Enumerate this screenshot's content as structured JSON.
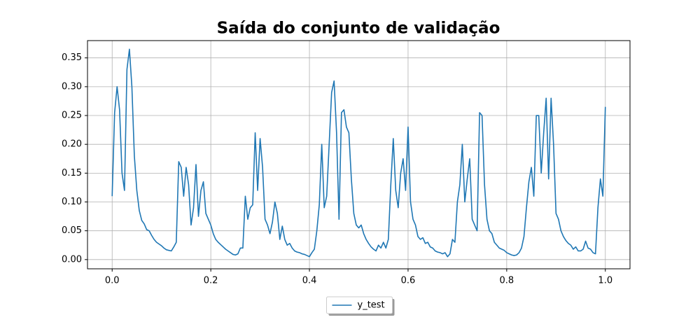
{
  "chart_data": {
    "type": "line",
    "title": "Saída do conjunto de validação",
    "x": [
      0,
      0.005,
      0.01,
      0.015,
      0.02,
      0.025,
      0.03,
      0.035,
      0.04,
      0.045,
      0.05,
      0.055,
      0.06,
      0.065,
      0.07,
      0.075,
      0.08,
      0.085,
      0.09,
      0.095,
      0.1,
      0.105,
      0.11,
      0.115,
      0.12,
      0.125,
      0.13,
      0.135,
      0.14,
      0.145,
      0.15,
      0.155,
      0.16,
      0.165,
      0.17,
      0.175,
      0.18,
      0.185,
      0.19,
      0.195,
      0.2,
      0.205,
      0.21,
      0.215,
      0.22,
      0.225,
      0.23,
      0.235,
      0.24,
      0.245,
      0.25,
      0.255,
      0.26,
      0.265,
      0.27,
      0.275,
      0.28,
      0.285,
      0.29,
      0.295,
      0.3,
      0.305,
      0.31,
      0.315,
      0.32,
      0.325,
      0.33,
      0.335,
      0.34,
      0.345,
      0.35,
      0.355,
      0.36,
      0.365,
      0.37,
      0.375,
      0.38,
      0.385,
      0.39,
      0.395,
      0.4,
      0.405,
      0.41,
      0.415,
      0.42,
      0.425,
      0.43,
      0.435,
      0.44,
      0.445,
      0.45,
      0.455,
      0.46,
      0.465,
      0.47,
      0.475,
      0.48,
      0.485,
      0.49,
      0.495,
      0.5,
      0.505,
      0.51,
      0.515,
      0.52,
      0.525,
      0.53,
      0.535,
      0.54,
      0.545,
      0.55,
      0.555,
      0.56,
      0.565,
      0.57,
      0.575,
      0.58,
      0.585,
      0.59,
      0.595,
      0.6,
      0.605,
      0.61,
      0.615,
      0.62,
      0.625,
      0.63,
      0.635,
      0.64,
      0.645,
      0.65,
      0.655,
      0.66,
      0.665,
      0.67,
      0.675,
      0.68,
      0.685,
      0.69,
      0.695,
      0.7,
      0.705,
      0.71,
      0.715,
      0.72,
      0.725,
      0.73,
      0.735,
      0.74,
      0.745,
      0.75,
      0.755,
      0.76,
      0.765,
      0.77,
      0.775,
      0.78,
      0.785,
      0.79,
      0.795,
      0.8,
      0.805,
      0.81,
      0.815,
      0.82,
      0.825,
      0.83,
      0.835,
      0.84,
      0.845,
      0.85,
      0.855,
      0.86,
      0.865,
      0.87,
      0.875,
      0.88,
      0.885,
      0.89,
      0.895,
      0.9,
      0.905,
      0.91,
      0.915,
      0.92,
      0.925,
      0.93,
      0.935,
      0.94,
      0.945,
      0.95,
      0.955,
      0.96,
      0.965,
      0.97,
      0.975,
      0.98,
      0.985,
      0.99,
      0.995,
      1
    ],
    "series": [
      {
        "name": "y_test",
        "color": "#1f77b4",
        "values": [
          0.11,
          0.255,
          0.3,
          0.26,
          0.15,
          0.12,
          0.33,
          0.365,
          0.3,
          0.18,
          0.12,
          0.085,
          0.068,
          0.062,
          0.052,
          0.05,
          0.042,
          0.035,
          0.03,
          0.027,
          0.024,
          0.02,
          0.017,
          0.016,
          0.015,
          0.022,
          0.03,
          0.17,
          0.16,
          0.11,
          0.16,
          0.13,
          0.06,
          0.09,
          0.165,
          0.075,
          0.12,
          0.135,
          0.08,
          0.07,
          0.06,
          0.045,
          0.035,
          0.03,
          0.026,
          0.022,
          0.018,
          0.015,
          0.012,
          0.009,
          0.008,
          0.01,
          0.02,
          0.02,
          0.11,
          0.07,
          0.09,
          0.095,
          0.22,
          0.12,
          0.21,
          0.16,
          0.07,
          0.06,
          0.045,
          0.065,
          0.1,
          0.08,
          0.035,
          0.058,
          0.035,
          0.025,
          0.028,
          0.02,
          0.015,
          0.013,
          0.012,
          0.01,
          0.009,
          0.007,
          0.005,
          0.012,
          0.018,
          0.05,
          0.095,
          0.2,
          0.09,
          0.11,
          0.2,
          0.29,
          0.31,
          0.22,
          0.07,
          0.255,
          0.26,
          0.23,
          0.22,
          0.14,
          0.08,
          0.06,
          0.055,
          0.06,
          0.045,
          0.035,
          0.028,
          0.022,
          0.018,
          0.015,
          0.025,
          0.02,
          0.03,
          0.02,
          0.035,
          0.13,
          0.21,
          0.12,
          0.09,
          0.15,
          0.175,
          0.12,
          0.23,
          0.1,
          0.07,
          0.06,
          0.04,
          0.035,
          0.038,
          0.028,
          0.03,
          0.022,
          0.02,
          0.015,
          0.013,
          0.012,
          0.01,
          0.012,
          0.005,
          0.01,
          0.035,
          0.03,
          0.1,
          0.13,
          0.2,
          0.1,
          0.14,
          0.175,
          0.07,
          0.06,
          0.05,
          0.255,
          0.25,
          0.13,
          0.07,
          0.05,
          0.045,
          0.03,
          0.025,
          0.02,
          0.018,
          0.016,
          0.012,
          0.01,
          0.008,
          0.007,
          0.008,
          0.012,
          0.02,
          0.04,
          0.09,
          0.135,
          0.16,
          0.11,
          0.25,
          0.25,
          0.15,
          0.22,
          0.28,
          0.14,
          0.28,
          0.2,
          0.08,
          0.07,
          0.05,
          0.04,
          0.033,
          0.028,
          0.025,
          0.018,
          0.022,
          0.015,
          0.015,
          0.018,
          0.032,
          0.02,
          0.018,
          0.012,
          0.01,
          0.09,
          0.14,
          0.11,
          0.265
        ]
      }
    ],
    "xlim": [
      -0.05,
      1.05
    ],
    "ylim": [
      -0.016,
      0.38
    ],
    "xticks": [
      {
        "value": 0,
        "label": "0.0"
      },
      {
        "value": 0.2,
        "label": "0.2"
      },
      {
        "value": 0.4,
        "label": "0.4"
      },
      {
        "value": 0.6,
        "label": "0.6"
      },
      {
        "value": 0.8,
        "label": "0.8"
      },
      {
        "value": 1,
        "label": "1.0"
      }
    ],
    "yticks": [
      {
        "value": 0,
        "label": "0.00"
      },
      {
        "value": 0.05,
        "label": "0.05"
      },
      {
        "value": 0.1,
        "label": "0.10"
      },
      {
        "value": 0.15,
        "label": "0.15"
      },
      {
        "value": 0.2,
        "label": "0.20"
      },
      {
        "value": 0.25,
        "label": "0.25"
      },
      {
        "value": 0.3,
        "label": "0.30"
      },
      {
        "value": 0.35,
        "label": "0.35"
      }
    ],
    "grid": true,
    "legend": "below"
  }
}
